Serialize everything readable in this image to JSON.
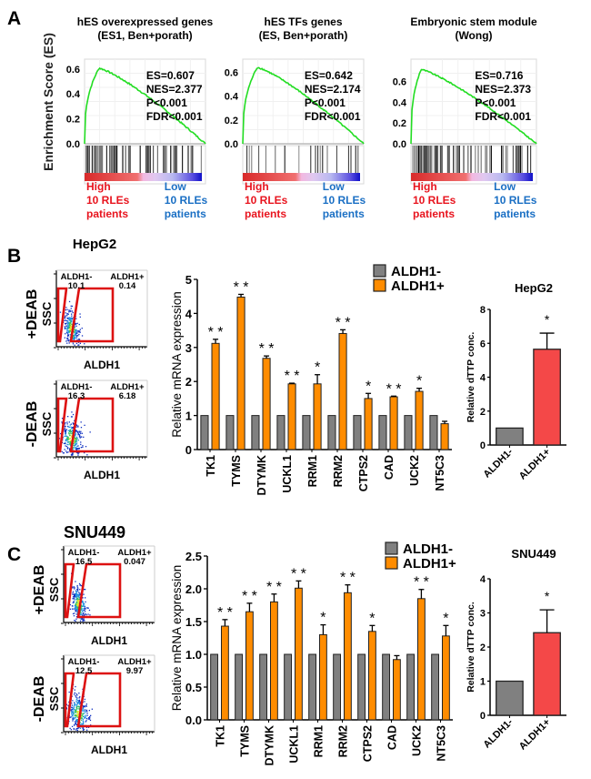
{
  "panels": {
    "A": {
      "label": "A",
      "ylabel": "Enrichment Score (ES)",
      "gsea": [
        {
          "title_lines": [
            "hES overexpressed genes",
            "(ES1, Ben+porath)"
          ],
          "stats": [
            "ES=0.607",
            "NES=2.377",
            "P<0.001",
            "FDR<0.001"
          ],
          "yticks": [
            "0.6",
            "0.4",
            "0.2",
            "0.0"
          ],
          "ytick_values": [
            0.6,
            0.4,
            0.2,
            0.0
          ],
          "ymax": 0.65,
          "peak_es": 0.607,
          "peak_position": 0.12,
          "high_label": [
            "High",
            "10 RLEs",
            "patients"
          ],
          "low_label": [
            "Low",
            "10 RLEs",
            "patients"
          ],
          "hit_density": "high"
        },
        {
          "title_lines": [
            "hES TFs genes",
            "(ES, Ben+porath)"
          ],
          "stats": [
            "ES=0.642",
            "NES=2.174",
            "P<0.001",
            "FDR<0.001"
          ],
          "yticks": [
            "0.6",
            "0.4",
            "0.2",
            "0.0"
          ],
          "ytick_values": [
            0.6,
            0.4,
            0.2,
            0.0
          ],
          "ymax": 0.68,
          "peak_es": 0.642,
          "peak_position": 0.12,
          "high_label": [
            "High",
            "10 RLEs",
            "patients"
          ],
          "low_label": [
            "Low",
            "10 RLEs",
            "patients"
          ],
          "hit_density": "low"
        },
        {
          "title_lines": [
            "Embryonic stem module",
            "(Wong)"
          ],
          "stats": [
            "ES=0.716",
            "NES=2.373",
            "P<0.001",
            "FDR<0.001"
          ],
          "yticks": [
            "0.6",
            "0.4",
            "0.2",
            "0.0"
          ],
          "ytick_values": [
            0.6,
            0.4,
            0.2,
            0.0
          ],
          "ymax": 0.78,
          "peak_es": 0.716,
          "peak_position": 0.08,
          "high_label": [
            "High",
            "10 RLEs",
            "patients"
          ],
          "low_label": [
            "Low",
            "10 RLEs",
            "patients"
          ],
          "hit_density": "high"
        }
      ]
    },
    "B": {
      "label": "B",
      "cell_line": "HepG2",
      "flow": [
        {
          "condition": "+DEAB",
          "yaxis": "SSC",
          "xaxis": "ALDH1",
          "neg_label": "ALDH1-",
          "neg_value": "10.1",
          "pos_label": "ALDH1+",
          "pos_value": "0.14"
        },
        {
          "condition": "-DEAB",
          "yaxis": "SSC",
          "xaxis": "ALDH1",
          "neg_label": "ALDH1-",
          "neg_value": "16.3",
          "pos_label": "ALDH1+",
          "pos_value": "6.18"
        }
      ]
    },
    "C": {
      "label": "C",
      "cell_line": "SNU449",
      "flow": [
        {
          "condition": "+DEAB",
          "yaxis": "SSC",
          "xaxis": "ALDH1",
          "neg_label": "ALDH1-",
          "neg_value": "16.5",
          "pos_label": "ALDH1+",
          "pos_value": "0.047"
        },
        {
          "condition": "-DEAB",
          "yaxis": "SSC",
          "xaxis": "ALDH1",
          "neg_label": "ALDH1-",
          "neg_value": "12.5",
          "pos_label": "ALDH1+",
          "pos_value": "9.97"
        }
      ]
    }
  },
  "colors": {
    "aldh_neg": "#808080",
    "aldh_pos": "#ff8c00",
    "dttp_pos": "#f44848",
    "gsea_line": "#22dd22",
    "high_label": "#e8141e",
    "low_label": "#1a6fc4",
    "gate": "#dd1111"
  },
  "chart_data": [
    {
      "id": "B-mrna",
      "type": "bar",
      "title": "",
      "xlabel": "",
      "ylabel": "Relative mRNA expression",
      "ylim": [
        0,
        5
      ],
      "yticks": [
        "0",
        "1",
        "2",
        "3",
        "4",
        "5"
      ],
      "ytick_values": [
        0,
        1,
        2,
        3,
        4,
        5
      ],
      "categories": [
        "TK1",
        "TYMS",
        "DTYMK",
        "UCKL1",
        "RRM1",
        "RRM2",
        "CTPS2",
        "CAD",
        "UCK2",
        "NT5C3"
      ],
      "legend": [
        "ALDH1-",
        "ALDH1+"
      ],
      "legend_position": "top-right",
      "series": [
        {
          "name": "ALDH1-",
          "values": [
            1,
            1,
            1,
            1,
            1,
            1,
            1,
            1,
            1,
            1
          ],
          "errors": [
            0,
            0,
            0,
            0,
            0,
            0,
            0,
            0,
            0,
            0
          ]
        },
        {
          "name": "ALDH1+",
          "values": [
            3.12,
            4.48,
            2.68,
            1.93,
            1.93,
            3.41,
            1.5,
            1.55,
            1.71,
            0.76
          ],
          "errors": [
            0.12,
            0.08,
            0.07,
            0.02,
            0.27,
            0.11,
            0.15,
            0.02,
            0.09,
            0.07
          ]
        }
      ],
      "significance": [
        "**",
        "**",
        "**",
        "**",
        "*",
        "**",
        "*",
        "**",
        "*",
        ""
      ]
    },
    {
      "id": "B-dttp",
      "type": "bar",
      "title": "HepG2",
      "xlabel": "",
      "ylabel": "Relative dTTP conc.",
      "ylim": [
        0,
        8
      ],
      "yticks": [
        "0",
        "2",
        "4",
        "6",
        "8"
      ],
      "ytick_values": [
        0,
        2,
        4,
        6,
        8
      ],
      "categories": [
        "ALDH1-",
        "ALDH1+"
      ],
      "values": [
        1.0,
        5.65
      ],
      "errors": [
        0,
        0.95
      ],
      "significance": [
        "",
        "*"
      ]
    },
    {
      "id": "C-mrna",
      "type": "bar",
      "title": "",
      "xlabel": "",
      "ylabel": "Relative mRNA expression",
      "ylim": [
        0,
        2.5
      ],
      "yticks": [
        "0.0",
        "0.5",
        "1.0",
        "1.5",
        "2.0",
        "2.5"
      ],
      "ytick_values": [
        0,
        0.5,
        1.0,
        1.5,
        2.0,
        2.5
      ],
      "categories": [
        "TK1",
        "TYMS",
        "DTYMK",
        "UCKL1",
        "RRM1",
        "RRM2",
        "CTPS2",
        "CAD",
        "UCK2",
        "NT5C3"
      ],
      "legend": [
        "ALDH1-",
        "ALDH1+"
      ],
      "legend_position": "top-right",
      "series": [
        {
          "name": "ALDH1-",
          "values": [
            1,
            1,
            1,
            1,
            1,
            1,
            1,
            1,
            1,
            1
          ],
          "errors": [
            0,
            0,
            0,
            0,
            0,
            0,
            0,
            0,
            0,
            0
          ]
        },
        {
          "name": "ALDH1+",
          "values": [
            1.43,
            1.65,
            1.8,
            2.01,
            1.3,
            1.94,
            1.35,
            0.92,
            1.85,
            1.28
          ],
          "errors": [
            0.1,
            0.13,
            0.12,
            0.11,
            0.15,
            0.12,
            0.09,
            0.06,
            0.14,
            0.16
          ]
        }
      ],
      "significance": [
        "**",
        "**",
        "**",
        "**",
        "*",
        "**",
        "*",
        "",
        "**",
        "*"
      ]
    },
    {
      "id": "C-dttp",
      "type": "bar",
      "title": "SNU449",
      "xlabel": "",
      "ylabel": "Relative dTTP conc.",
      "ylim": [
        0,
        4
      ],
      "yticks": [
        "0",
        "1",
        "2",
        "3",
        "4"
      ],
      "ytick_values": [
        0,
        1,
        2,
        3,
        4
      ],
      "categories": [
        "ALDH1-",
        "ALDH1+"
      ],
      "values": [
        1.0,
        2.42
      ],
      "errors": [
        0,
        0.67
      ],
      "significance": [
        "",
        "*"
      ]
    }
  ]
}
